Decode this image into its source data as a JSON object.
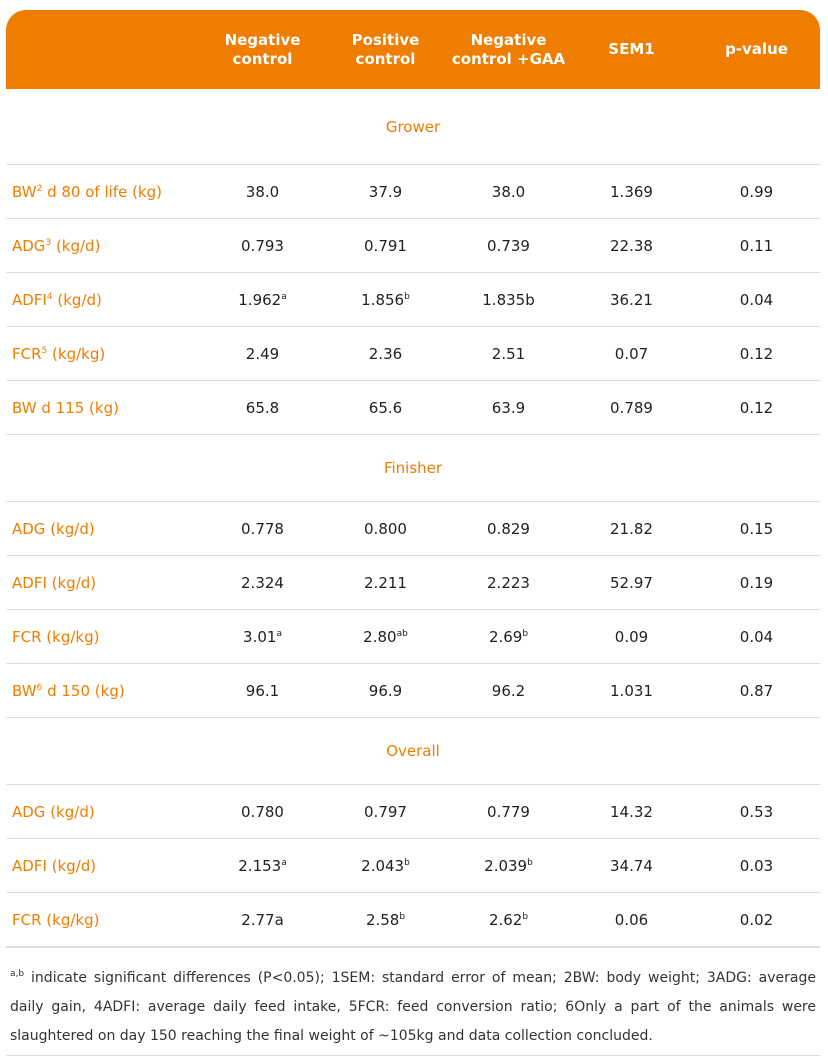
{
  "header": [
    "Negative\ncontrol",
    "Positive\ncontrol",
    "Negative\ncontrol +GAA",
    "SEM1",
    "p-value"
  ],
  "sections": [
    {
      "title": "Grower",
      "rows": [
        {
          "label": "BW",
          "label_sup": "2",
          "label_rest": " d 80 of life (kg)",
          "cells": [
            [
              "38.0",
              ""
            ],
            [
              "37.9",
              ""
            ],
            [
              "38.0",
              ""
            ],
            [
              "1.369",
              ""
            ],
            [
              "0.99",
              ""
            ]
          ]
        },
        {
          "label": "ADG",
          "label_sup": "3",
          "label_rest": " (kg/d)",
          "cells": [
            [
              "0.793",
              ""
            ],
            [
              "0.791",
              ""
            ],
            [
              "0.739",
              ""
            ],
            [
              "22.38",
              ""
            ],
            [
              "0.11",
              ""
            ]
          ]
        },
        {
          "label": "ADFI",
          "label_sup": "4",
          "label_rest": " (kg/d)",
          "cells": [
            [
              "1.962",
              "a"
            ],
            [
              "1.856",
              "b"
            ],
            [
              "1.835b",
              ""
            ],
            [
              "36.21",
              ""
            ],
            [
              "0.04",
              ""
            ]
          ]
        },
        {
          "label": "FCR",
          "label_sup": "5",
          "label_rest": " (kg/kg)",
          "cells": [
            [
              "2.49",
              ""
            ],
            [
              "2.36",
              ""
            ],
            [
              "2.51",
              ""
            ],
            [
              "0.07",
              ""
            ],
            [
              "0.12",
              ""
            ]
          ]
        },
        {
          "label": "BW d 115 (kg)",
          "label_sup": "",
          "label_rest": "",
          "cells": [
            [
              "65.8",
              ""
            ],
            [
              "65.6",
              ""
            ],
            [
              "63.9",
              ""
            ],
            [
              "0.789",
              ""
            ],
            [
              "0.12",
              ""
            ]
          ]
        }
      ]
    },
    {
      "title": "Finisher",
      "rows": [
        {
          "label": "ADG (kg/d)",
          "label_sup": "",
          "label_rest": "",
          "cells": [
            [
              "0.778",
              ""
            ],
            [
              "0.800",
              ""
            ],
            [
              "0.829",
              ""
            ],
            [
              "21.82",
              ""
            ],
            [
              "0.15",
              ""
            ]
          ]
        },
        {
          "label": "ADFI (kg/d)",
          "label_sup": "",
          "label_rest": "",
          "cells": [
            [
              "2.324",
              ""
            ],
            [
              "2.211",
              ""
            ],
            [
              "2.223",
              ""
            ],
            [
              "52.97",
              ""
            ],
            [
              "0.19",
              ""
            ]
          ]
        },
        {
          "label": "FCR (kg/kg)",
          "label_sup": "",
          "label_rest": "",
          "cells": [
            [
              "3.01",
              "a"
            ],
            [
              "2.80",
              "ab"
            ],
            [
              "2.69",
              "b"
            ],
            [
              "0.09",
              ""
            ],
            [
              "0.04",
              ""
            ]
          ]
        },
        {
          "label": "BW",
          "label_sup": "6",
          "label_rest": " d 150 (kg)",
          "cells": [
            [
              "96.1",
              ""
            ],
            [
              "96.9",
              ""
            ],
            [
              "96.2",
              ""
            ],
            [
              "1.031",
              ""
            ],
            [
              "0.87",
              ""
            ]
          ]
        }
      ]
    },
    {
      "title": "Overall",
      "rows": [
        {
          "label": "ADG (kg/d)",
          "label_sup": "",
          "label_rest": "",
          "cells": [
            [
              "0.780",
              ""
            ],
            [
              "0.797",
              ""
            ],
            [
              "0.779",
              ""
            ],
            [
              "14.32",
              ""
            ],
            [
              "0.53",
              ""
            ]
          ]
        },
        {
          "label": "ADFI (kg/d)",
          "label_sup": "",
          "label_rest": "",
          "cells": [
            [
              "2.153",
              "a"
            ],
            [
              "2.043",
              "b"
            ],
            [
              "2.039",
              "b"
            ],
            [
              "34.74",
              ""
            ],
            [
              "0.03",
              ""
            ]
          ]
        },
        {
          "label": "FCR (kg/kg)",
          "label_sup": "",
          "label_rest": "",
          "cells": [
            [
              "2.77a",
              ""
            ],
            [
              "2.58",
              "b"
            ],
            [
              "2.62",
              "b"
            ],
            [
              "0.06",
              ""
            ],
            [
              "0.02",
              ""
            ]
          ]
        }
      ]
    }
  ],
  "footnote": {
    "sup": "a,b",
    "text": " indicate significant differences (P<0.05); 1SEM: standard error of mean; 2BW: body weight; 3ADG: average daily gain, 4ADFI: average daily feed intake, 5FCR: feed conversion ratio; 6Only a part of the animals were slaughtered on day 150 reaching the final weight of ~105kg and data collection concluded."
  },
  "colors": {
    "accent": "#EF7D00",
    "rule": "#E2DDD8",
    "text": "#222222"
  }
}
